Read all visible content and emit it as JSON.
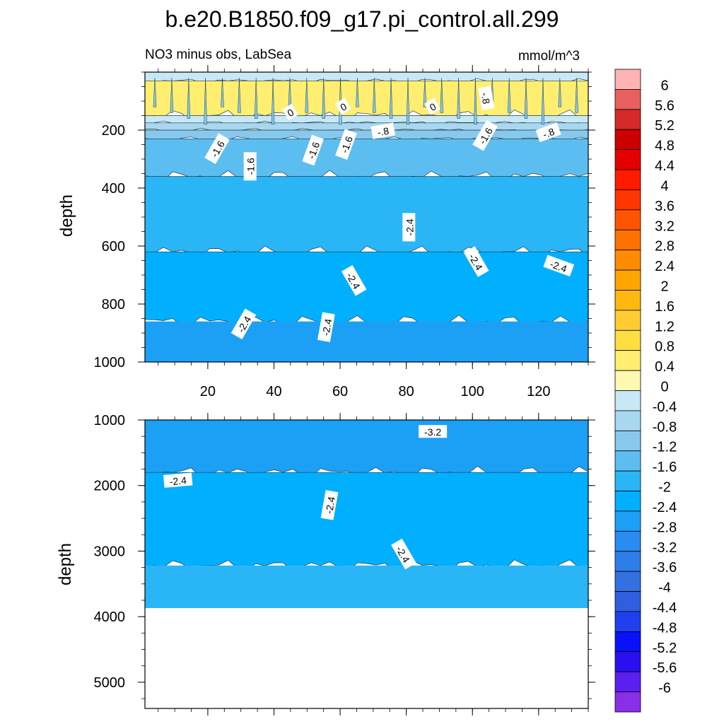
{
  "chart_data": {
    "type": "heatmap",
    "title": "b.e20.B1850.f09_g17.pi_control.all.299",
    "subtitle_left": "NO3 minus obs, LabSea",
    "subtitle_right": "mmol/m^3",
    "panels": [
      {
        "name": "upper",
        "ylabel": "depth",
        "ylim": [
          0,
          1000
        ],
        "yticks": [
          "200",
          "400",
          "600",
          "800",
          "1000"
        ],
        "xlim": [
          1,
          135
        ],
        "xticks": [
          "20",
          "40",
          "60",
          "80",
          "100",
          "120"
        ],
        "bands": [
          {
            "from": 0,
            "to": 30,
            "value": -0.4
          },
          {
            "from": 30,
            "to": 150,
            "value": 0.4
          },
          {
            "from": 150,
            "to": 175,
            "value": -0.4
          },
          {
            "from": 175,
            "to": 200,
            "value": -0.8
          },
          {
            "from": 200,
            "to": 230,
            "value": -1.2
          },
          {
            "from": 230,
            "to": 360,
            "value": -1.6
          },
          {
            "from": 360,
            "to": 620,
            "value": -2.0
          },
          {
            "from": 620,
            "to": 860,
            "value": -2.4
          },
          {
            "from": 860,
            "to": 1000,
            "value": -2.8
          }
        ],
        "contour_labels": [
          {
            "text": "0",
            "x": 45,
            "y": 140,
            "angle": -30
          },
          {
            "text": "0",
            "x": 61,
            "y": 120,
            "angle": -30
          },
          {
            "text": "0",
            "x": 88,
            "y": 120,
            "angle": -30
          },
          {
            "text": "-.8",
            "x": 104,
            "y": 90,
            "angle": 80
          },
          {
            "text": "-1.6",
            "x": 23,
            "y": 265,
            "angle": -60
          },
          {
            "text": "-1.6",
            "x": 33,
            "y": 325,
            "angle": -90
          },
          {
            "text": "-1.6",
            "x": 52,
            "y": 270,
            "angle": -70
          },
          {
            "text": "-1.6",
            "x": 62,
            "y": 250,
            "angle": -70
          },
          {
            "text": "-.8",
            "x": 73,
            "y": 205,
            "angle": -10
          },
          {
            "text": "-1.6",
            "x": 104,
            "y": 220,
            "angle": -60
          },
          {
            "text": "-.8",
            "x": 123,
            "y": 210,
            "angle": -20
          },
          {
            "text": "-2.4",
            "x": 81,
            "y": 535,
            "angle": -90
          },
          {
            "text": "-2.4",
            "x": 64,
            "y": 720,
            "angle": 60
          },
          {
            "text": "-2.4",
            "x": 101,
            "y": 655,
            "angle": 60
          },
          {
            "text": "-2.4",
            "x": 126,
            "y": 670,
            "angle": 20
          },
          {
            "text": "-2.4",
            "x": 31,
            "y": 870,
            "angle": -60
          },
          {
            "text": "-2.4",
            "x": 56,
            "y": 880,
            "angle": -80
          }
        ]
      },
      {
        "name": "lower",
        "ylabel": "depth",
        "ylim": [
          1000,
          5400
        ],
        "yticks": [
          "1000",
          "2000",
          "3000",
          "4000",
          "5000"
        ],
        "xlim": [
          1,
          135
        ],
        "data_bottom": 3870,
        "bands": [
          {
            "from": 1000,
            "to": 1800,
            "value": -2.8
          },
          {
            "from": 1800,
            "to": 3220,
            "value": -2.4
          },
          {
            "from": 3220,
            "to": 3870,
            "value": -2.0
          }
        ],
        "contour_labels": [
          {
            "text": "-3.2",
            "x": 88,
            "y": 1185,
            "angle": 0
          },
          {
            "text": "-2.4",
            "x": 11,
            "y": 1930,
            "angle": -5
          },
          {
            "text": "-2.4",
            "x": 57,
            "y": 2300,
            "angle": -80
          },
          {
            "text": "-2.4",
            "x": 79,
            "y": 3050,
            "angle": 60
          }
        ]
      }
    ],
    "colorbar": {
      "levels": [
        "6",
        "5.6",
        "5.2",
        "4.8",
        "4.4",
        "4",
        "3.6",
        "3.2",
        "2.8",
        "2.4",
        "2",
        "1.6",
        "1.2",
        "0.8",
        "0.4",
        "0",
        "-0.4",
        "-0.8",
        "-1.2",
        "-1.6",
        "-2",
        "-2.4",
        "-2.8",
        "-3.2",
        "-3.6",
        "-4",
        "-4.4",
        "-4.8",
        "-5.2",
        "-5.6",
        "-6"
      ],
      "colors": [
        "#ffb3b3",
        "#e86060",
        "#d42a2a",
        "#cc0000",
        "#e40000",
        "#ff1a00",
        "#ff3600",
        "#ff5500",
        "#ff7200",
        "#ff8c00",
        "#ffa500",
        "#ffb810",
        "#ffcc30",
        "#ffde40",
        "#ffee70",
        "#fff8b0",
        "#c8e8f6",
        "#a8d8f0",
        "#88c8ec",
        "#5cbef0",
        "#2ab6f6",
        "#00b0ff",
        "#1ca0f6",
        "#2a8cf0",
        "#2e7ee8",
        "#3470e0",
        "#2f5ee0",
        "#2040f0",
        "#0a10f8",
        "#2a10f0",
        "#5a20f0",
        "#8a2ee8"
      ]
    }
  }
}
